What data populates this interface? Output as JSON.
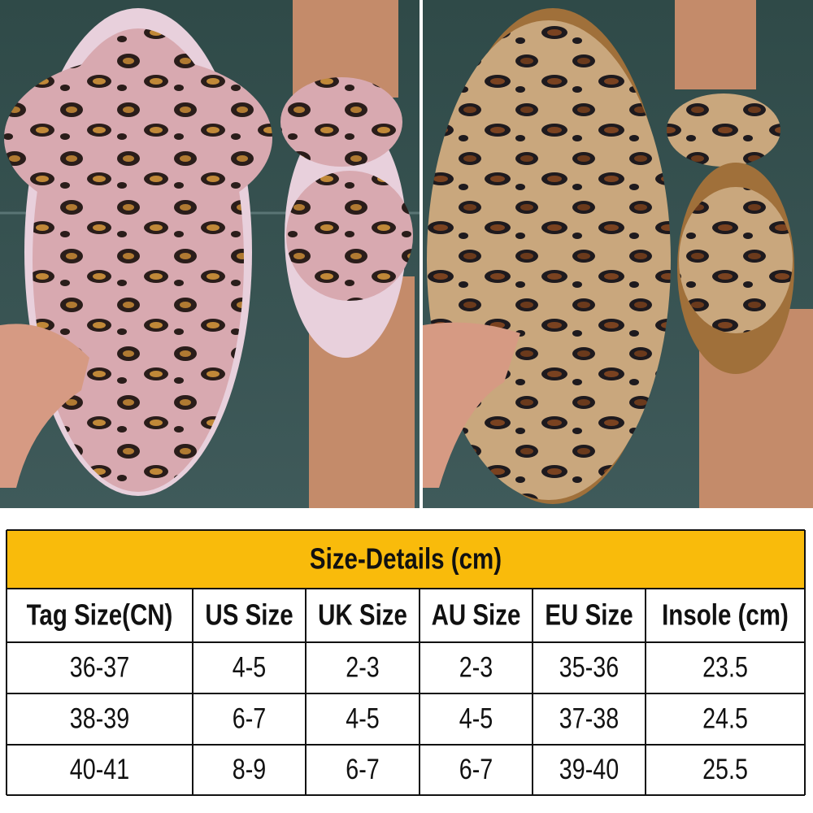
{
  "table": {
    "title": "Size-Details (cm)",
    "columns": [
      "Tag Size(CN)",
      "US Size",
      "UK Size",
      "AU Size",
      "EU Size",
      "Insole (cm)"
    ],
    "rows": [
      [
        "36-37",
        "4-5",
        "2-3",
        "2-3",
        "35-36",
        "23.5"
      ],
      [
        "38-39",
        "6-7",
        "4-5",
        "4-5",
        "37-38",
        "24.5"
      ],
      [
        "40-41",
        "8-9",
        "6-7",
        "6-7",
        "39-40",
        "25.5"
      ]
    ]
  }
}
